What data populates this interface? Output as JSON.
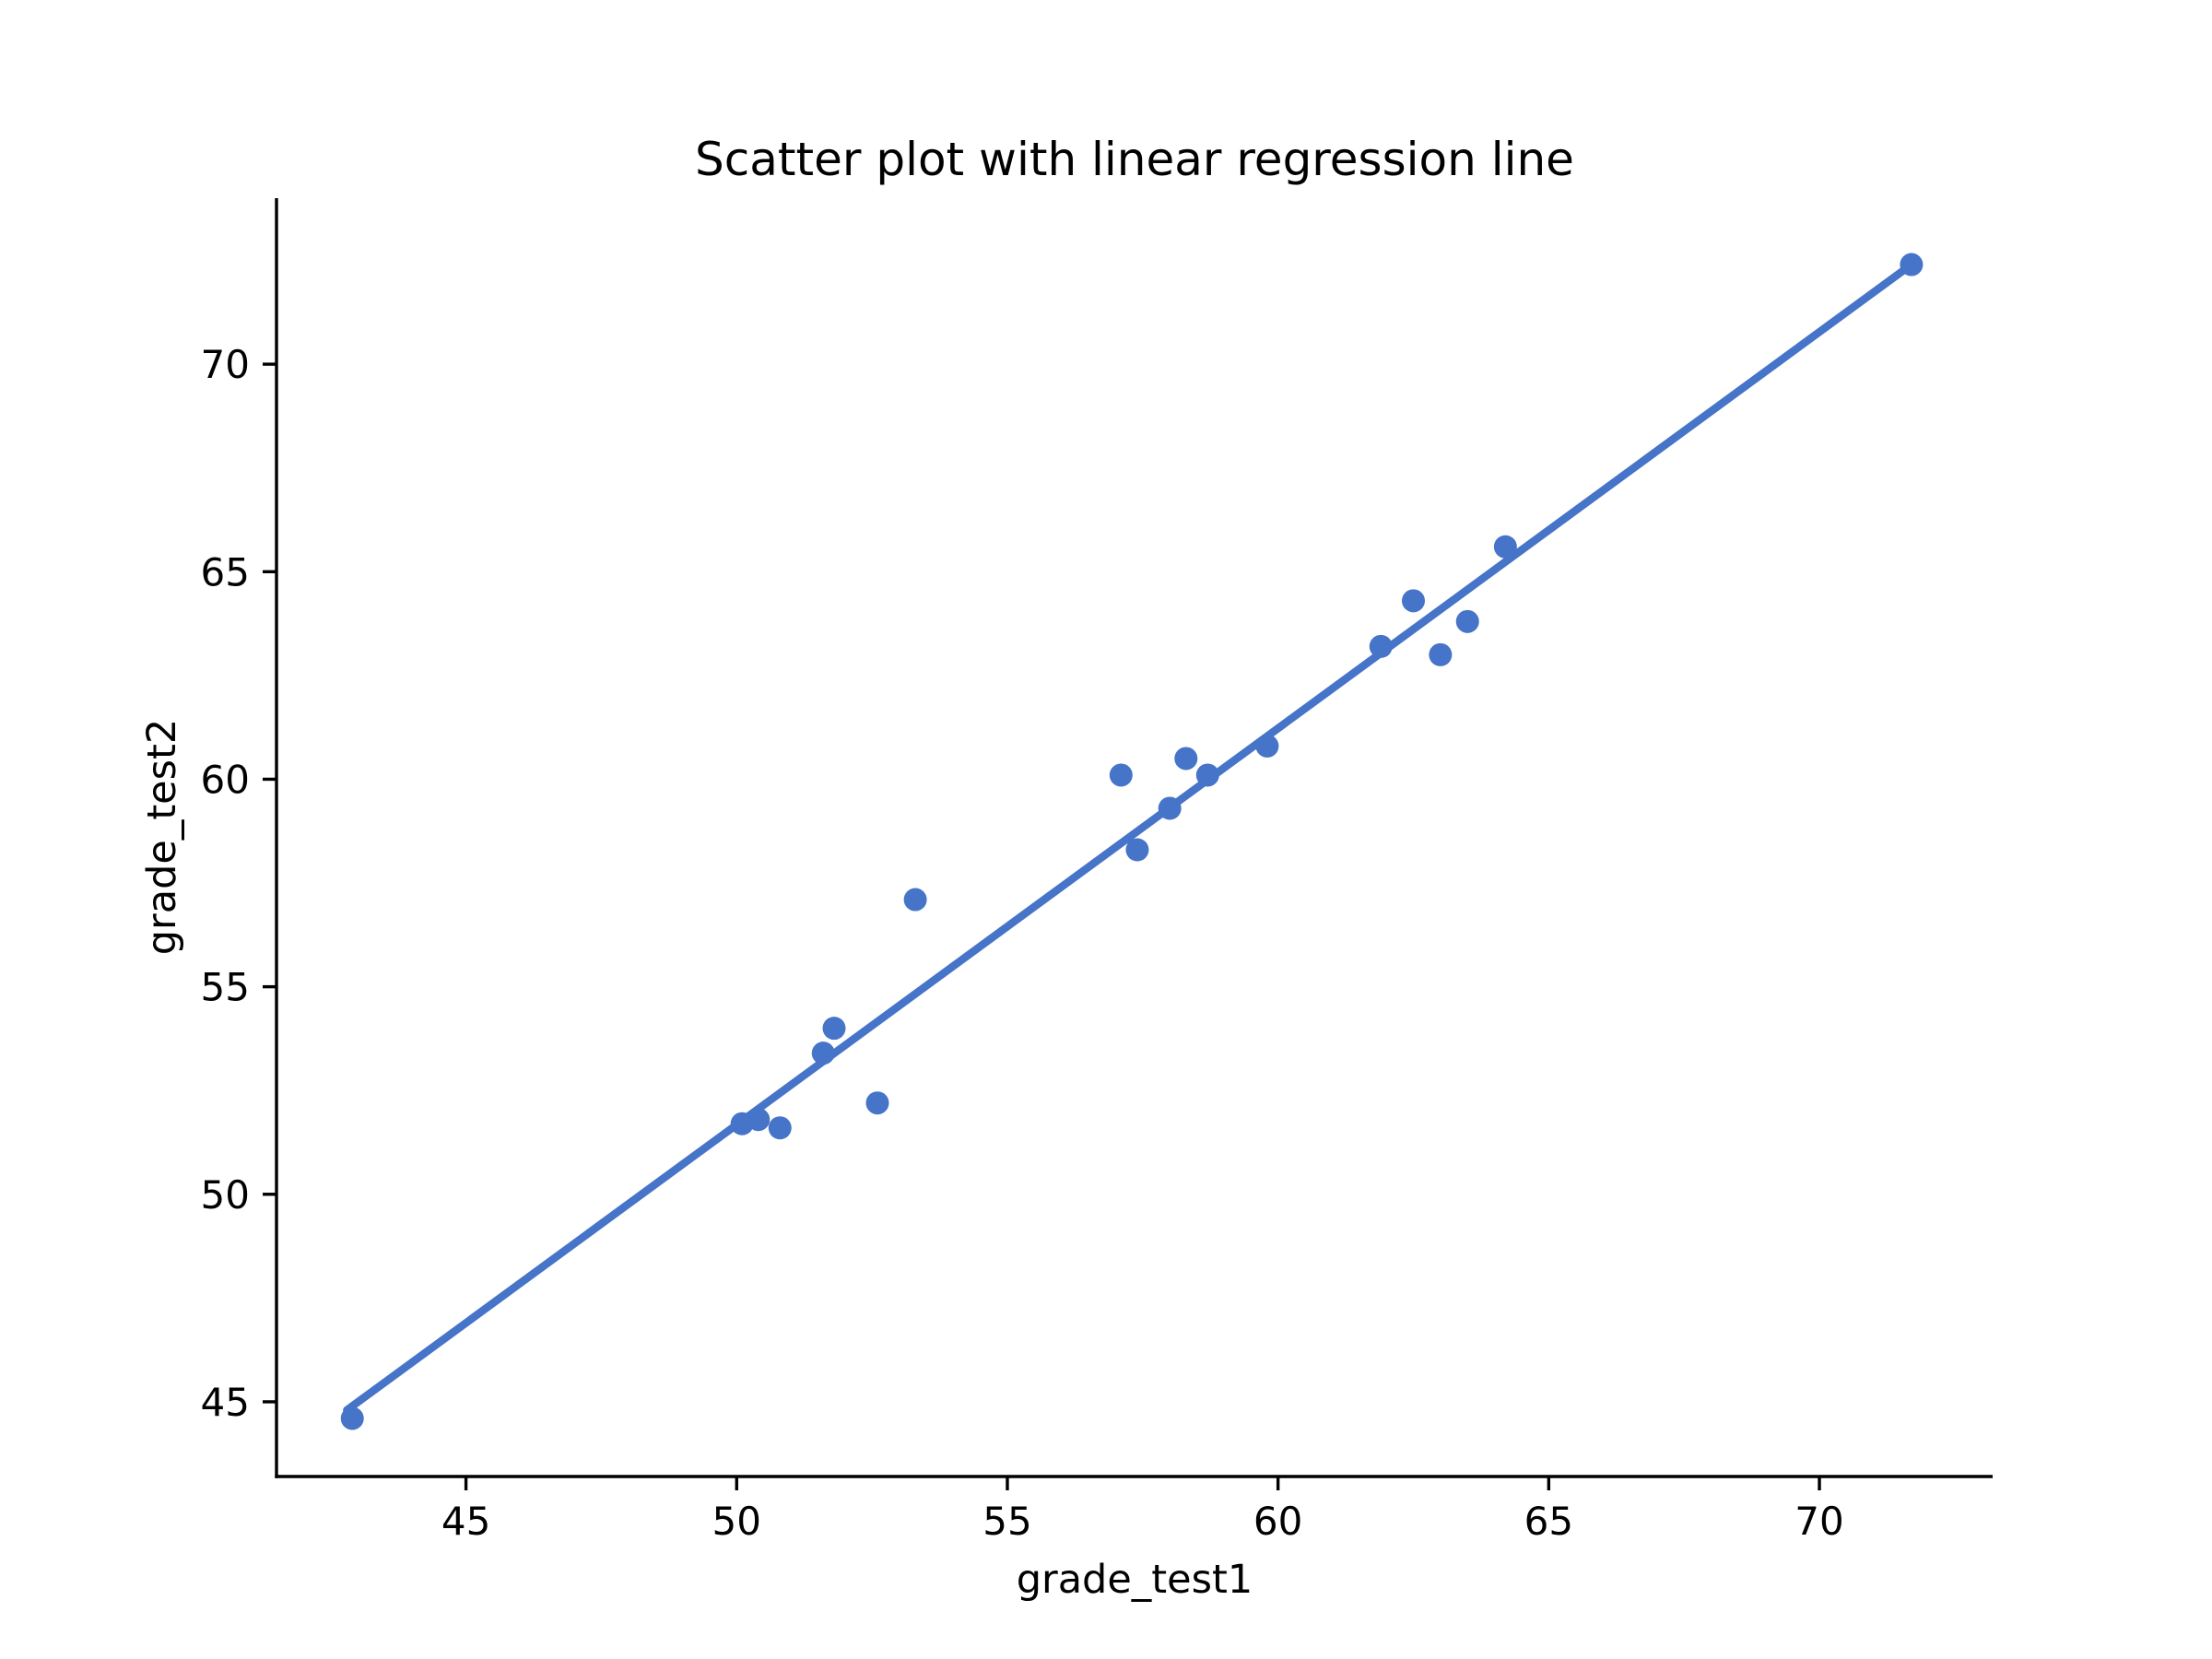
{
  "figure": {
    "background": "#ffffff",
    "axis_color": "#000000",
    "accent_color": "#4674C8"
  },
  "chart_data": {
    "type": "scatter",
    "title": "Scatter plot with linear regression line",
    "xlabel": "grade_test1",
    "ylabel": "grade_test2",
    "x_ticks": [
      45,
      50,
      55,
      60,
      65,
      70
    ],
    "y_ticks": [
      45,
      50,
      55,
      60,
      65,
      70
    ],
    "xlim": [
      41.5,
      73.2
    ],
    "ylim": [
      43.2,
      74.0
    ],
    "grid": false,
    "legend_position": "none",
    "marker_color": "#4674C8",
    "line_color": "#4674C8",
    "points": [
      [
        42.9,
        44.6
      ],
      [
        50.1,
        51.7
      ],
      [
        50.4,
        51.8
      ],
      [
        50.8,
        51.6
      ],
      [
        51.6,
        53.4
      ],
      [
        51.8,
        54.0
      ],
      [
        52.6,
        52.2
      ],
      [
        53.3,
        57.1
      ],
      [
        57.1,
        60.1
      ],
      [
        57.4,
        58.3
      ],
      [
        58.0,
        59.3
      ],
      [
        58.3,
        60.5
      ],
      [
        58.7,
        60.1
      ],
      [
        59.8,
        60.8
      ],
      [
        61.9,
        63.2
      ],
      [
        62.5,
        64.3
      ],
      [
        63.0,
        63.0
      ],
      [
        63.5,
        63.8
      ],
      [
        64.2,
        65.6
      ],
      [
        71.7,
        72.4
      ]
    ],
    "regression_line": {
      "x1": 42.8,
      "y1": 44.8,
      "x2": 71.7,
      "y2": 72.4,
      "slope": 0.952,
      "intercept": 4.06
    }
  }
}
